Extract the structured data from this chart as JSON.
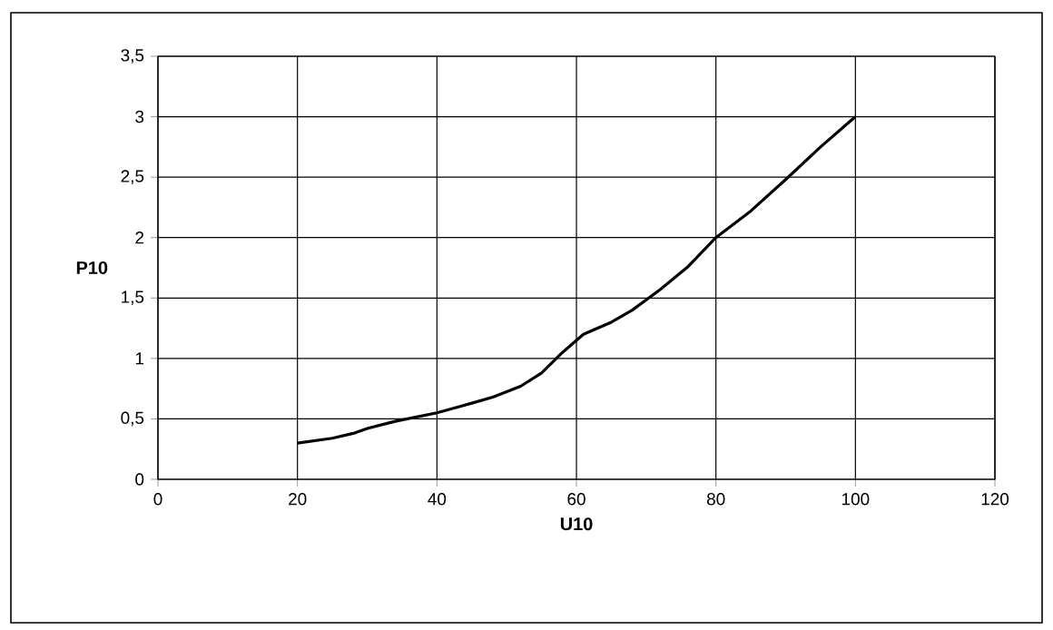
{
  "chart_data": {
    "type": "line",
    "xlabel": "U10",
    "ylabel": "P10",
    "x": [
      20,
      25,
      28,
      30,
      34,
      40,
      45,
      48,
      52,
      55,
      58,
      61,
      65,
      68,
      72,
      76,
      80,
      85,
      90,
      95,
      100
    ],
    "series": [
      {
        "color": "#000000",
        "values": [
          0.3,
          0.34,
          0.38,
          0.42,
          0.48,
          0.55,
          0.63,
          0.68,
          0.77,
          0.88,
          1.05,
          1.2,
          1.3,
          1.4,
          1.57,
          1.76,
          2.0,
          2.22,
          2.48,
          2.75,
          3.0
        ]
      }
    ],
    "xlim": [
      0,
      120
    ],
    "xticks": [
      0,
      20,
      40,
      60,
      80,
      100,
      120
    ],
    "ylim": [
      0,
      3.5
    ],
    "yticks": [
      0,
      {
        "value": 0.5,
        "label": "0,5"
      },
      1,
      {
        "value": 1.5,
        "label": "1,5"
      },
      2,
      {
        "value": 2.5,
        "label": "2,5"
      },
      3,
      {
        "value": 3.5,
        "label": "3,5"
      }
    ],
    "grid": true,
    "marker": "none",
    "line_style": "solid"
  }
}
